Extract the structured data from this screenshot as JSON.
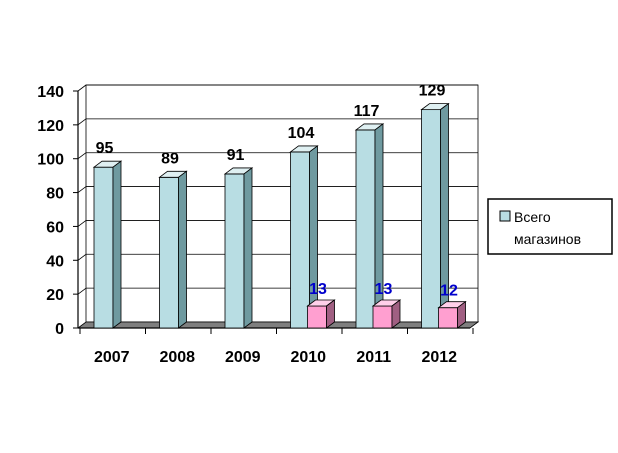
{
  "chart_data": {
    "type": "bar",
    "categories": [
      "2007",
      "2008",
      "2009",
      "2010",
      "2011",
      "2012"
    ],
    "series": [
      {
        "name": "Всего магазинов",
        "values": [
          95,
          89,
          91,
          104,
          117,
          129
        ],
        "color": "#b8dde3",
        "side_color": "#6f9aa0",
        "top_color": "#dff0f2",
        "label_color": "#000000"
      },
      {
        "values": [
          null,
          null,
          null,
          13,
          13,
          12
        ],
        "color": "#ff9fd0",
        "side_color": "#a05f82",
        "top_color": "#ffd0ea",
        "label_color": "#0000cc"
      }
    ],
    "legend": {
      "entries": [
        "Всего",
        "магазинов"
      ],
      "position": "right"
    },
    "ylim": [
      0,
      140
    ],
    "yticks": [
      "0",
      "20",
      "40",
      "60",
      "80",
      "100",
      "120",
      "140"
    ],
    "grid": true,
    "title": "",
    "xlabel": "",
    "ylabel": ""
  }
}
